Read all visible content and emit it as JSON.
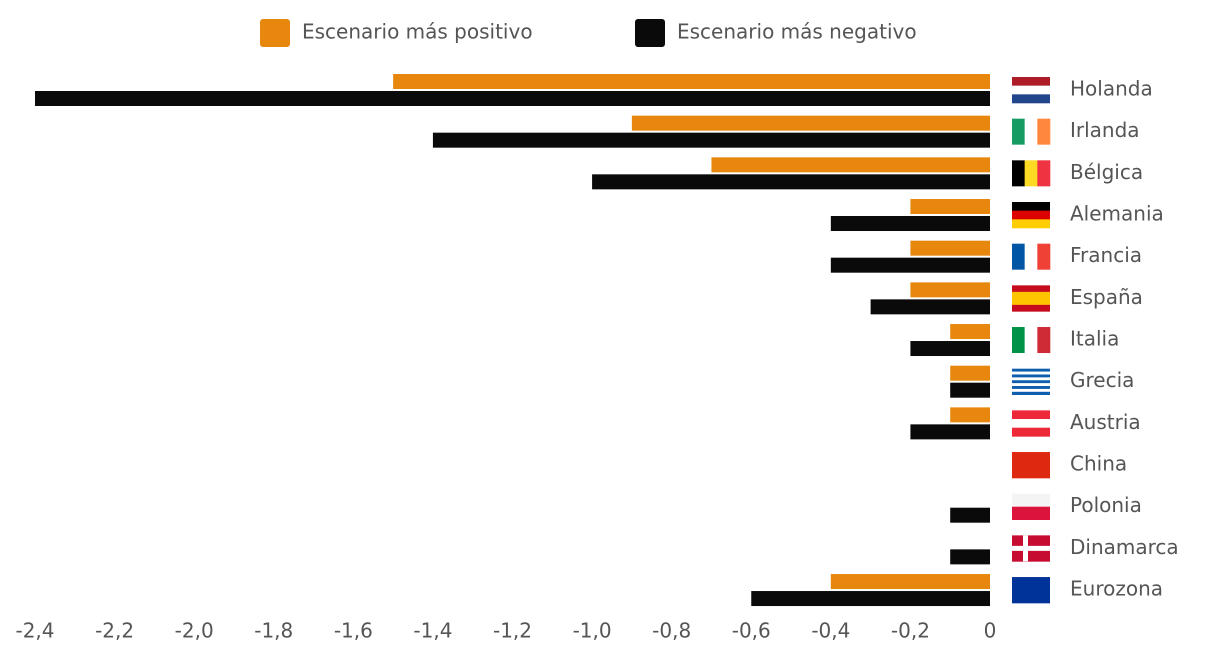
{
  "chart_data": {
    "type": "hbar",
    "categories": [
      "Holanda",
      "Irlanda",
      "Bélgica",
      "Alemania",
      "Francia",
      "España",
      "Italia",
      "Grecia",
      "Austria",
      "China",
      "Polonia",
      "Dinamarca",
      "Eurozona"
    ],
    "series": [
      {
        "name": "Escenario más positivo",
        "color": "#e8870e",
        "values": [
          -1.5,
          -0.9,
          -0.7,
          -0.2,
          -0.2,
          -0.2,
          -0.1,
          -0.1,
          -0.1,
          0,
          0,
          0,
          -0.4
        ]
      },
      {
        "name": "Escenario más negativo",
        "color": "#0a0a0a",
        "values": [
          -2.4,
          -1.4,
          -1.0,
          -0.4,
          -0.4,
          -0.3,
          -0.2,
          -0.1,
          -0.2,
          0,
          -0.1,
          -0.1,
          -0.6
        ]
      }
    ],
    "xlim": [
      -2.4,
      0
    ],
    "xticks": [
      {
        "value": -2.4,
        "label": "-2,4"
      },
      {
        "value": -2.2,
        "label": "-2,2"
      },
      {
        "value": -2.0,
        "label": "-2,0"
      },
      {
        "value": -1.8,
        "label": "-1,8"
      },
      {
        "value": -1.6,
        "label": "-1,6"
      },
      {
        "value": -1.4,
        "label": "-1,4"
      },
      {
        "value": -1.2,
        "label": "-1,2"
      },
      {
        "value": -1.0,
        "label": "-1,0"
      },
      {
        "value": -0.8,
        "label": "-0,8"
      },
      {
        "value": -0.6,
        "label": "-0,6"
      },
      {
        "value": -0.4,
        "label": "-0,4"
      },
      {
        "value": -0.2,
        "label": "-0,2"
      },
      0
    ],
    "grid": false,
    "legend": "top"
  }
}
